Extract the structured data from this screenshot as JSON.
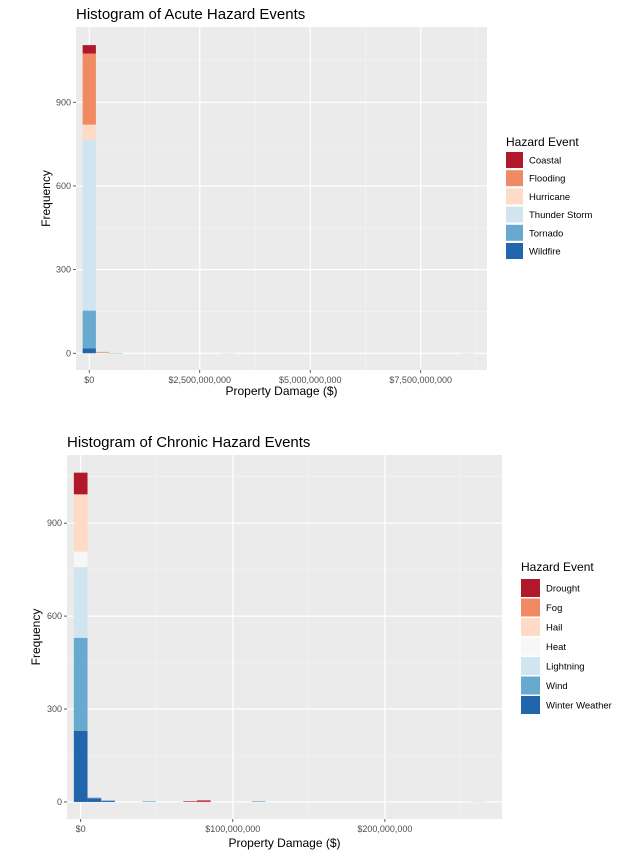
{
  "chart_data": [
    {
      "type": "bar",
      "stacked": true,
      "title": "Histogram of Acute Hazard Events",
      "xlabel": "Property Damage ($)",
      "ylabel": "Frequency",
      "xlim": [
        -300000000,
        9000000000
      ],
      "ylim": [
        -60,
        1170
      ],
      "xticks": [
        0,
        2500000000,
        5000000000,
        7500000000
      ],
      "xtick_labels": [
        "$0",
        "$2,500,000,000",
        "$5,000,000,000",
        "$7,500,000,000"
      ],
      "yticks": [
        0,
        300,
        600,
        900
      ],
      "ytick_labels": [
        "0",
        "300",
        "600",
        "900"
      ],
      "grid": true,
      "legend_title": "Hazard Event",
      "legend_position": "right",
      "series": [
        {
          "name": "Coastal",
          "color": "#b2182b"
        },
        {
          "name": "Flooding",
          "color": "#ef8a62"
        },
        {
          "name": "Hurricane",
          "color": "#fddbc7"
        },
        {
          "name": "Thunder Storm",
          "color": "#d1e5f0"
        },
        {
          "name": "Tornado",
          "color": "#67a9cf"
        },
        {
          "name": "Wildfire",
          "color": "#2166ac"
        }
      ],
      "bins": [
        {
          "x0": -150000000,
          "x1": 150000000,
          "counts": {
            "Wildfire": 18,
            "Tornado": 135,
            "Thunder Storm": 612,
            "Hurricane": 55,
            "Flooding": 255,
            "Coastal": 30
          }
        },
        {
          "x0": 150000000,
          "x1": 450000000,
          "counts": {
            "Thunder Storm": 2,
            "Flooding": 3
          }
        },
        {
          "x0": 450000000,
          "x1": 750000000,
          "counts": {
            "Thunder Storm": 1,
            "Tornado": 1
          }
        },
        {
          "x0": 3000000000,
          "x1": 3300000000,
          "counts": {
            "Thunder Storm": 1
          }
        },
        {
          "x0": 8400000000,
          "x1": 8700000000,
          "counts": {
            "Thunder Storm": 1
          }
        }
      ]
    },
    {
      "type": "bar",
      "stacked": true,
      "title": "Histogram of Chronic Hazard Events",
      "xlabel": "Property Damage ($)",
      "ylabel": "Frequency",
      "xlim": [
        -9000000,
        277000000
      ],
      "ylim": [
        -55,
        1120
      ],
      "xticks": [
        0,
        100000000,
        200000000
      ],
      "xtick_labels": [
        "$0",
        "$100,000,000",
        "$200,000,000"
      ],
      "yticks": [
        0,
        300,
        600,
        900
      ],
      "ytick_labels": [
        "0",
        "300",
        "600",
        "900"
      ],
      "grid": true,
      "legend_title": "Hazard Event",
      "legend_position": "right",
      "series": [
        {
          "name": "Drought",
          "color": "#b2182b"
        },
        {
          "name": "Fog",
          "color": "#ef8a62"
        },
        {
          "name": "Hail",
          "color": "#fddbc7"
        },
        {
          "name": "Heat",
          "color": "#f7f7f7"
        },
        {
          "name": "Lightning",
          "color": "#d1e5f0"
        },
        {
          "name": "Wind",
          "color": "#67a9cf"
        },
        {
          "name": "Winter Weather",
          "color": "#2166ac"
        }
      ],
      "bins": [
        {
          "x0": -4500000,
          "x1": 4500000,
          "counts": {
            "Winter Weather": 230,
            "Wind": 300,
            "Lightning": 228,
            "Heat": 50,
            "Hail": 185,
            "Drought": 70
          }
        },
        {
          "x0": 4500000,
          "x1": 13500000,
          "counts": {
            "Winter Weather": 12,
            "Wind": 2
          }
        },
        {
          "x0": 13500000,
          "x1": 22500000,
          "counts": {
            "Winter Weather": 3,
            "Wind": 2
          }
        },
        {
          "x0": 40500000,
          "x1": 49500000,
          "counts": {
            "Wind": 2
          }
        },
        {
          "x0": 67500000,
          "x1": 76500000,
          "counts": {
            "Drought": 2
          }
        },
        {
          "x0": 76500000,
          "x1": 85500000,
          "counts": {
            "Drought": 4,
            "Fog": 1
          }
        },
        {
          "x0": 112500000,
          "x1": 121500000,
          "counts": {
            "Wind": 2
          }
        },
        {
          "x0": 256500000,
          "x1": 265500000,
          "counts": {
            "Lightning": 2
          }
        }
      ]
    }
  ]
}
